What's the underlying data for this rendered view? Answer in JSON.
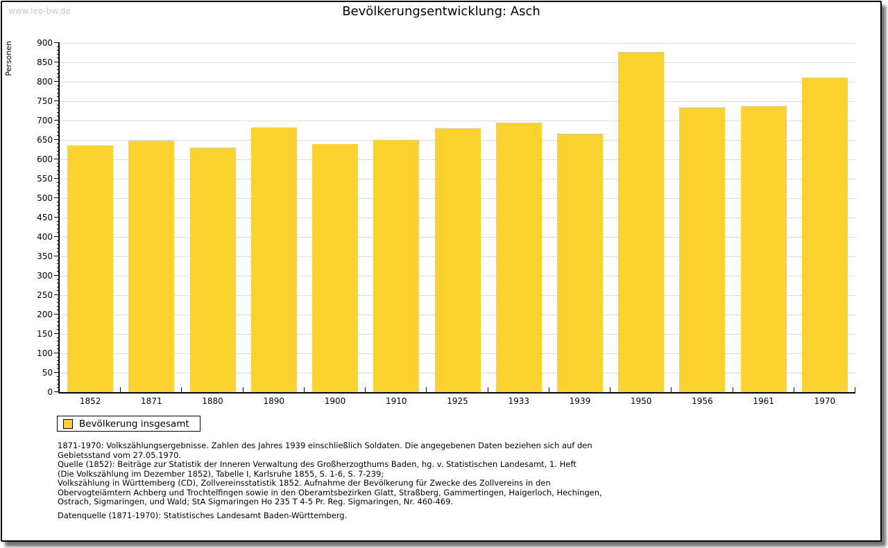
{
  "watermark": "www.leo-bw.de",
  "title": "Bevölkerungsentwicklung: Asch",
  "chart_data": {
    "type": "bar",
    "title": "Bevölkerungsentwicklung: Asch",
    "xlabel": "",
    "ylabel": "Personen",
    "categories": [
      "1852",
      "1871",
      "1880",
      "1890",
      "1900",
      "1910",
      "1925",
      "1933",
      "1939",
      "1950",
      "1956",
      "1961",
      "1970"
    ],
    "values": [
      635,
      649,
      631,
      683,
      640,
      650,
      681,
      695,
      666,
      876,
      734,
      738,
      810
    ],
    "series_name": "Bevölkerung insgesamt",
    "ylim": [
      0,
      900
    ],
    "ytick_step": 50,
    "y_minor_step": 10,
    "grid": true,
    "legend_position": "bottom-left",
    "bar_color": "#FCD32E"
  },
  "legend": {
    "label": "Bevölkerung insgesamt",
    "swatch_color": "#FCD32E"
  },
  "footer": {
    "notes": [
      "1871-1970: Volkszählungsergebnisse. Zahlen des Jahres 1939 einschließlich Soldaten. Die angegebenen Daten beziehen sich auf den",
      "Gebietsstand vom 27.05.1970.",
      "Quelle (1852): Beiträge zur Statistik der Inneren Verwaltung des Großherzogthums Baden, hg. v. Statistischen Landesamt, 1. Heft",
      "(Die Volkszählung im Dezember 1852), Tabelle I, Karlsruhe 1855, S. 1-6, S. 7-239;",
      "Volkszählung in Württemberg (CD), Zollvereinsstatistik 1852. Aufnahme der Bevölkerung für Zwecke des Zollvereins in den",
      "Obervogteiämtern Achberg und Trochtelfingen sowie in den Oberamtsbezirken Glatt, Straßberg, Gammertingen, Haigerloch, Hechingen,",
      "Ostrach, Sigmaringen, und Wald; StA Sigmaringen Ho 235 T 4-5 Pr. Reg. Sigmaringen, Nr. 460-469."
    ],
    "datasource": "Datenquelle (1871-1970): Statistisches Landesamt Baden-Württemberg."
  },
  "colors": {
    "bar": "#FCD32E",
    "grid": "#DBDBDB",
    "axis": "#000000",
    "watermark_text": "#C9C9C9"
  }
}
